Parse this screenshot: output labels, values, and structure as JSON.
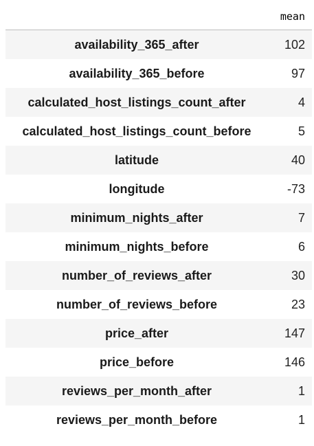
{
  "table": {
    "columns": [
      "mean"
    ],
    "rows": [
      {
        "label": "availability_365_after",
        "value": "102"
      },
      {
        "label": "availability_365_before",
        "value": "97"
      },
      {
        "label": "calculated_host_listings_count_after",
        "value": "4"
      },
      {
        "label": "calculated_host_listings_count_before",
        "value": "5"
      },
      {
        "label": "latitude",
        "value": "40"
      },
      {
        "label": "longitude",
        "value": "-73"
      },
      {
        "label": "minimum_nights_after",
        "value": "7"
      },
      {
        "label": "minimum_nights_before",
        "value": "6"
      },
      {
        "label": "number_of_reviews_after",
        "value": "30"
      },
      {
        "label": "number_of_reviews_before",
        "value": "23"
      },
      {
        "label": "price_after",
        "value": "147"
      },
      {
        "label": "price_before",
        "value": "146"
      },
      {
        "label": "reviews_per_month_after",
        "value": "1"
      },
      {
        "label": "reviews_per_month_before",
        "value": "1"
      }
    ]
  }
}
